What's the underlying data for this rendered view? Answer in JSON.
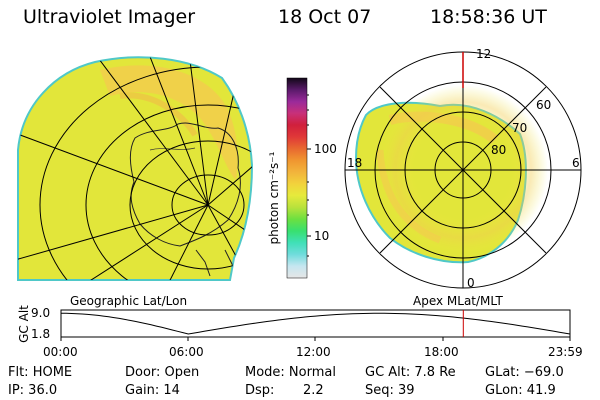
{
  "header": {
    "instrument": "Ultraviolet Imager",
    "date": "18 Oct 07",
    "time": "18:58:36 UT"
  },
  "left_panel": {
    "caption": "Geographic Lat/Lon"
  },
  "right_panel": {
    "caption": "Apex MLat/MLT",
    "mlt_labels": [
      "12",
      "18",
      "6",
      "0"
    ],
    "lat_labels": [
      "60",
      "70",
      "80"
    ]
  },
  "colorbar": {
    "unit_label": "photon cm⁻²s⁻¹",
    "ticks": [
      "100",
      "10"
    ],
    "scale": "log",
    "colors": [
      "#e6e6e6",
      "#c6e6f0",
      "#70dcdc",
      "#40e0b8",
      "#38e070",
      "#6ce040",
      "#b8e23c",
      "#e6ea3c",
      "#f2d23c",
      "#f2b43c",
      "#f09630",
      "#e86830",
      "#e03838",
      "#d0203c",
      "#c8307a",
      "#9a2a9a",
      "#5a1a6a",
      "#120818"
    ]
  },
  "altitude_plot": {
    "ylabel": "GC Alt",
    "ymax_label": "9.0",
    "ymin_label": "1.8",
    "ymin": 1.8,
    "ymax": 9.0,
    "x_ticks": [
      "00:00",
      "06:00",
      "12:00",
      "18:00",
      "23:59"
    ],
    "marker_time": "18:58",
    "line_color": "#000000",
    "marker_color": "#cc0000"
  },
  "status": {
    "flt": "Flt: HOME",
    "ip": "IP: 36.0",
    "door": "Door: Open",
    "gain": "Gain: 14",
    "mode": "Mode: Normal",
    "dsp_label": "Dsp:",
    "dsp_value": "2.2",
    "gc_alt": "GC Alt: 7.8 Re",
    "seq": "Seq: 39",
    "glat": "GLat: −69.0",
    "glon": "GLon: 41.9"
  }
}
